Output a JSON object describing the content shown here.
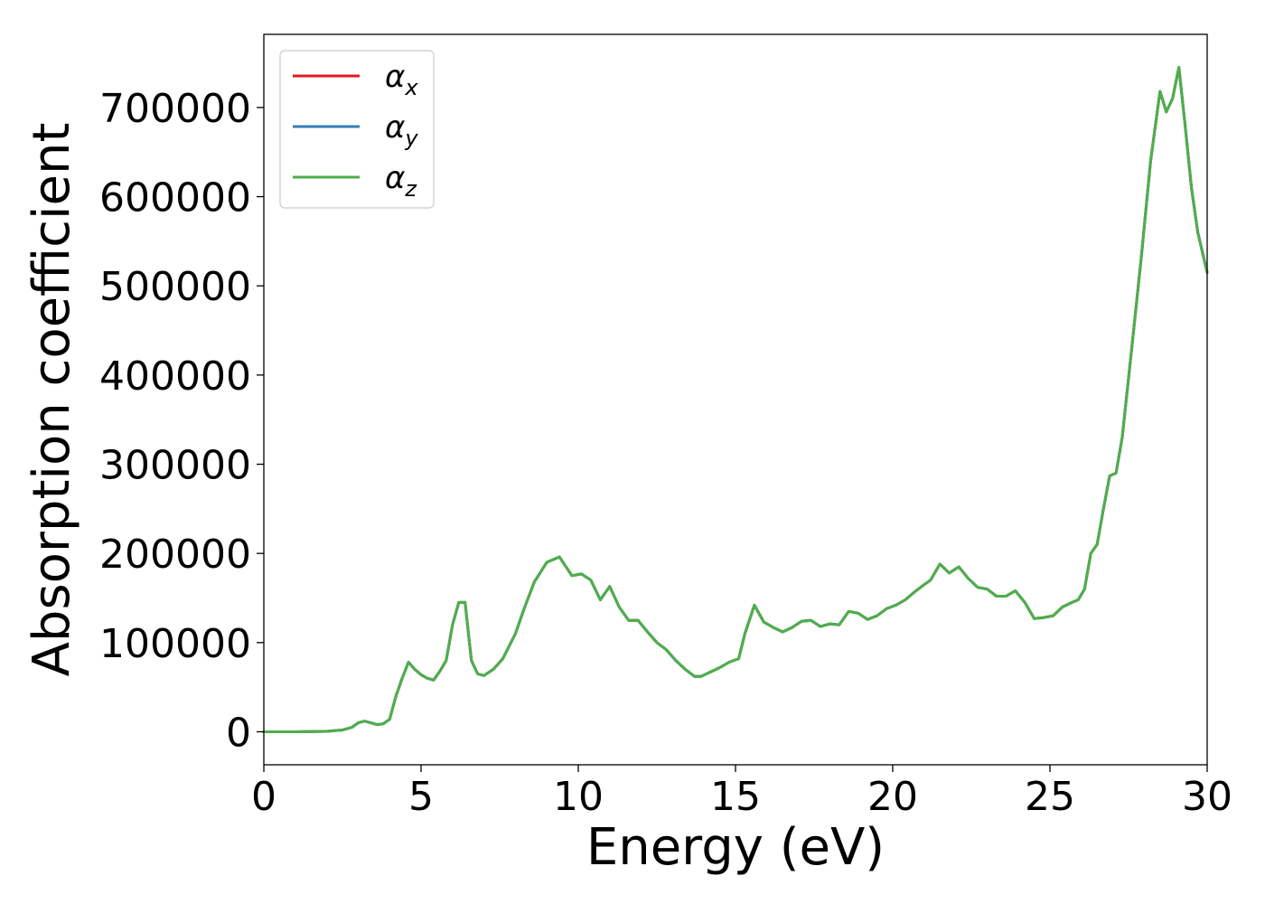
{
  "chart_data": {
    "type": "line",
    "xlabel": "Energy (eV)",
    "ylabel": "Absorption coefficient",
    "xlim": [
      0,
      30
    ],
    "ylim": [
      -37000,
      782000
    ],
    "xticks": [
      "0",
      "5",
      "10",
      "15",
      "20",
      "25",
      "30"
    ],
    "yticks": [
      "0",
      "100000",
      "200000",
      "300000",
      "400000",
      "500000",
      "600000",
      "700000"
    ],
    "grid": false,
    "legend_position": "top-left",
    "series": [
      {
        "name": "α",
        "subscript": "x",
        "color": "#e41a1c"
      },
      {
        "name": "α",
        "subscript": "y",
        "color": "#377eb8"
      },
      {
        "name": "α",
        "subscript": "z",
        "color": "#4daf4a"
      }
    ],
    "x": [
      0,
      1,
      2,
      2.5,
      2.8,
      3.0,
      3.2,
      3.4,
      3.6,
      3.8,
      4.0,
      4.2,
      4.4,
      4.6,
      4.8,
      5.0,
      5.2,
      5.4,
      5.6,
      5.8,
      6.0,
      6.2,
      6.4,
      6.6,
      6.8,
      7.0,
      7.3,
      7.6,
      8.0,
      8.3,
      8.6,
      9.0,
      9.4,
      9.8,
      10.1,
      10.4,
      10.7,
      11.0,
      11.3,
      11.6,
      11.9,
      12.2,
      12.5,
      12.8,
      13.1,
      13.4,
      13.7,
      13.9,
      14.2,
      14.5,
      14.8,
      15.1,
      15.3,
      15.6,
      15.9,
      16.2,
      16.5,
      16.8,
      17.1,
      17.4,
      17.7,
      18.0,
      18.3,
      18.6,
      18.9,
      19.2,
      19.5,
      19.8,
      20.1,
      20.4,
      20.7,
      21.0,
      21.2,
      21.5,
      21.8,
      22.1,
      22.4,
      22.7,
      23.0,
      23.3,
      23.6,
      23.9,
      24.2,
      24.5,
      24.8,
      25.1,
      25.4,
      25.7,
      25.9,
      26.1,
      26.3,
      26.5,
      26.7,
      26.9,
      27.1,
      27.3,
      27.6,
      27.9,
      28.2,
      28.5,
      28.7,
      28.9,
      29.1,
      29.3,
      29.5,
      29.7,
      30.0
    ],
    "values": [
      0,
      0,
      500,
      2000,
      5000,
      10000,
      12000,
      10000,
      8000,
      9000,
      14000,
      40000,
      60000,
      78000,
      70000,
      64000,
      60000,
      58000,
      68000,
      80000,
      120000,
      145000,
      145000,
      80000,
      65000,
      63000,
      70000,
      82000,
      110000,
      140000,
      168000,
      190000,
      196000,
      175000,
      177000,
      170000,
      148000,
      163000,
      140000,
      125000,
      125000,
      112000,
      100000,
      92000,
      80000,
      70000,
      62000,
      62000,
      67000,
      72000,
      78000,
      82000,
      110000,
      142000,
      123000,
      117000,
      112000,
      117000,
      124000,
      125000,
      118000,
      121000,
      120000,
      135000,
      133000,
      126000,
      130000,
      138000,
      142000,
      148000,
      157000,
      165000,
      170000,
      188000,
      178000,
      185000,
      172000,
      162000,
      160000,
      152000,
      152000,
      158000,
      145000,
      127000,
      128000,
      130000,
      140000,
      145000,
      148000,
      160000,
      200000,
      210000,
      250000,
      287000,
      290000,
      330000,
      430000,
      530000,
      640000,
      718000,
      695000,
      710000,
      745000,
      680000,
      610000,
      560000,
      515000
    ]
  }
}
